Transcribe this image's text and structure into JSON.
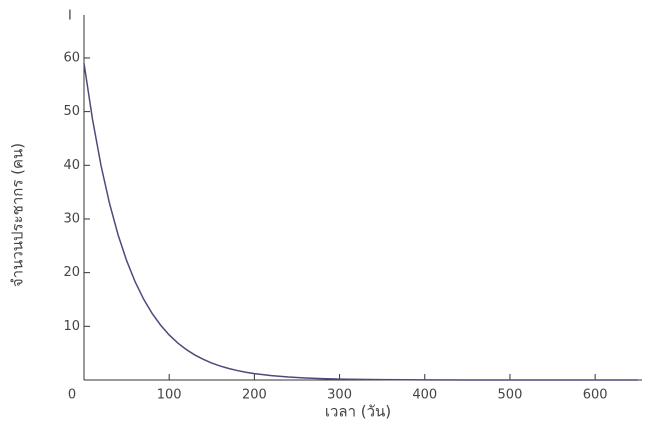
{
  "chart_data": {
    "type": "line",
    "axis_top_label": "I",
    "x_label": "เวลา (วัน)",
    "y_label": "จำนวนประชากร (คน)",
    "x": [
      0,
      10,
      20,
      30,
      40,
      50,
      60,
      70,
      80,
      90,
      100,
      110,
      120,
      130,
      140,
      150,
      160,
      170,
      180,
      190,
      200,
      220,
      240,
      260,
      280,
      300,
      350,
      400,
      450,
      500,
      550,
      600,
      650
    ],
    "series": [
      {
        "color": "#4b4b7d",
        "values": [
          59,
          48.55,
          39.94,
          32.86,
          27.04,
          22.25,
          18.31,
          15.06,
          12.39,
          10.2,
          8.39,
          6.9,
          5.68,
          4.67,
          3.85,
          3.16,
          2.6,
          2.14,
          1.76,
          1.45,
          1.19,
          0.81,
          0.55,
          0.37,
          0.25,
          0.17,
          0.06,
          0.02,
          0.01,
          0,
          0,
          0,
          0
        ]
      }
    ],
    "xlim": [
      0,
      655
    ],
    "ylim": [
      0,
      68
    ],
    "xticks": [
      0,
      100,
      200,
      300,
      400,
      500,
      600
    ],
    "yticks": [
      10,
      20,
      30,
      40,
      50,
      60
    ]
  }
}
